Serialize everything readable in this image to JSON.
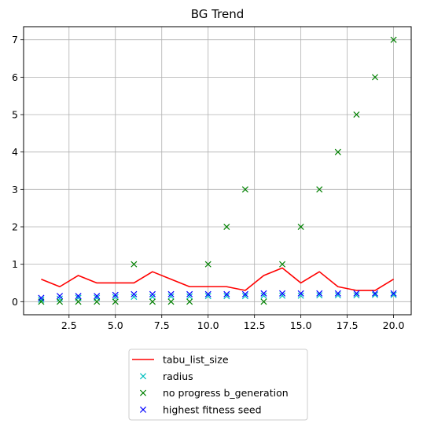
{
  "chart_data": {
    "type": "line",
    "title": "BG Trend",
    "xlabel": "",
    "ylabel": "",
    "xlim": [
      0.05,
      20.95
    ],
    "ylim": [
      -0.35,
      7.35
    ],
    "xticks": [
      2.5,
      5.0,
      7.5,
      10.0,
      12.5,
      15.0,
      17.5,
      20.0
    ],
    "xtick_labels": [
      "2.5",
      "5.0",
      "7.5",
      "10.0",
      "12.5",
      "15.0",
      "17.5",
      "20.0"
    ],
    "yticks": [
      0,
      1,
      2,
      3,
      4,
      5,
      6,
      7
    ],
    "ytick_labels": [
      "0",
      "1",
      "2",
      "3",
      "4",
      "5",
      "6",
      "7"
    ],
    "grid": true,
    "legend_position": "below",
    "x": [
      1,
      2,
      3,
      4,
      5,
      6,
      7,
      8,
      9,
      10,
      11,
      12,
      13,
      14,
      15,
      16,
      17,
      18,
      19,
      20
    ],
    "series": [
      {
        "name": "tabu_list_size",
        "kind": "line",
        "color": "#ff0000",
        "values": [
          0.6,
          0.4,
          0.7,
          0.5,
          0.5,
          0.5,
          0.8,
          0.6,
          0.4,
          0.4,
          0.4,
          0.3,
          0.7,
          0.9,
          0.5,
          0.8,
          0.4,
          0.3,
          0.3,
          0.6
        ]
      },
      {
        "name": "radius",
        "kind": "marker",
        "marker": "x",
        "color": "#00bfbf",
        "values": [
          0.05,
          0.08,
          0.1,
          0.1,
          0.12,
          0.13,
          0.13,
          0.14,
          0.14,
          0.15,
          0.15,
          0.15,
          0.16,
          0.16,
          0.16,
          0.17,
          0.17,
          0.17,
          0.18,
          0.18
        ]
      },
      {
        "name": "no progress b_generation",
        "kind": "marker",
        "marker": "x",
        "color": "#008000",
        "values": [
          0,
          0,
          0,
          0,
          0,
          1,
          0,
          0,
          0,
          1,
          2,
          3,
          0,
          1,
          2,
          3,
          4,
          5,
          6,
          7
        ]
      },
      {
        "name": "highest fitness seed",
        "kind": "marker",
        "marker": "x",
        "color": "#0000ff",
        "values": [
          0.1,
          0.15,
          0.15,
          0.15,
          0.18,
          0.2,
          0.2,
          0.2,
          0.2,
          0.2,
          0.2,
          0.2,
          0.22,
          0.22,
          0.22,
          0.22,
          0.22,
          0.22,
          0.22,
          0.22
        ]
      }
    ]
  }
}
